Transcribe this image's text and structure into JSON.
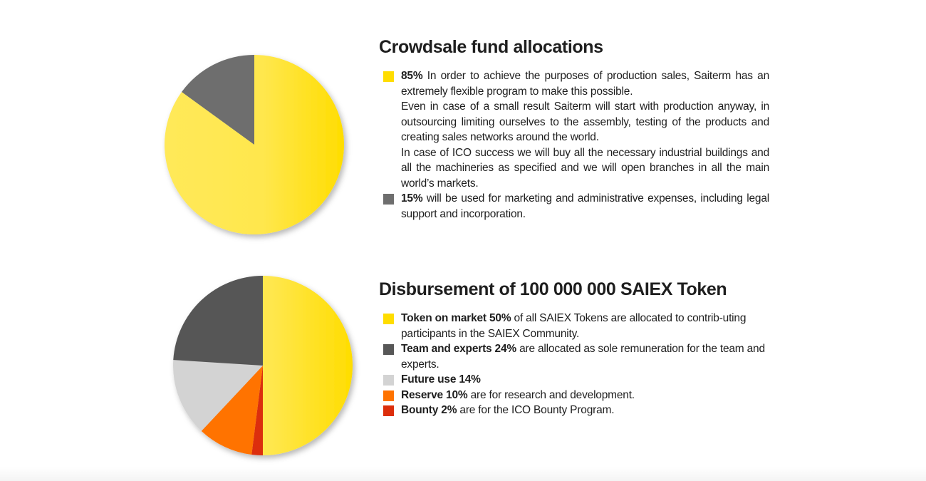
{
  "chart_data": [
    {
      "type": "pie",
      "title": "Crowdsale fund allocations",
      "slices": [
        {
          "value": 85,
          "color": "#FFDD00"
        },
        {
          "value": 15,
          "color": "#6E6E6E"
        }
      ]
    },
    {
      "type": "pie",
      "title": "Disbursement of 100 000 000 SAIEX Token",
      "slices": [
        {
          "label": "Token on market",
          "value": 50,
          "color": "#FFDD00"
        },
        {
          "label": "Bounty",
          "value": 2,
          "color": "#DC2E0B"
        },
        {
          "label": "Reserve",
          "value": 10,
          "color": "#FF7300"
        },
        {
          "label": "Future use",
          "value": 14,
          "color": "#D3D3D3"
        },
        {
          "label": "Team and experts",
          "value": 24,
          "color": "#575757"
        }
      ]
    }
  ],
  "section1": {
    "title": "Crowdsale fund allocations",
    "items": [
      {
        "color": "#FFDD00",
        "bold": "85%",
        "paragraphs": [
          "In order to achieve the purposes of production sales, Saiterm has an extremely flexible program to make this possible.",
          "Even in case of a small result Saiterm will start with production anyway, in outsourcing limiting ourselves to the assembly, testing of the products and creating sales networks around the world.",
          "In case of ICO success we will buy all the necessary industrial buildings and all the machineries as specified and we will open branches in all the main world’s markets."
        ]
      },
      {
        "color": "#6E6E6E",
        "bold": "15%",
        "paragraphs": [
          "will be used for marketing and administrative expenses, including legal support and incorporation."
        ]
      }
    ]
  },
  "section2": {
    "title": "Disbursement of 100 000 000 SAIEX Token",
    "items": [
      {
        "color": "#FFDD00",
        "bold": "Token on market 50%",
        "text": "of all SAIEX Tokens are allocated to contrib-uting participants in the SAIEX Community."
      },
      {
        "color": "#575757",
        "bold": "Team and experts 24%",
        "text": "are allocated as sole remuneration for the team and experts."
      },
      {
        "color": "#D3D3D3",
        "bold": "Future use 14%",
        "text": ""
      },
      {
        "color": "#FF7300",
        "bold": "Reserve 10%",
        "text": "are for research and development."
      },
      {
        "color": "#DC2E0B",
        "bold": "Bounty 2%",
        "text": "are for the ICO Bounty Program."
      }
    ]
  }
}
